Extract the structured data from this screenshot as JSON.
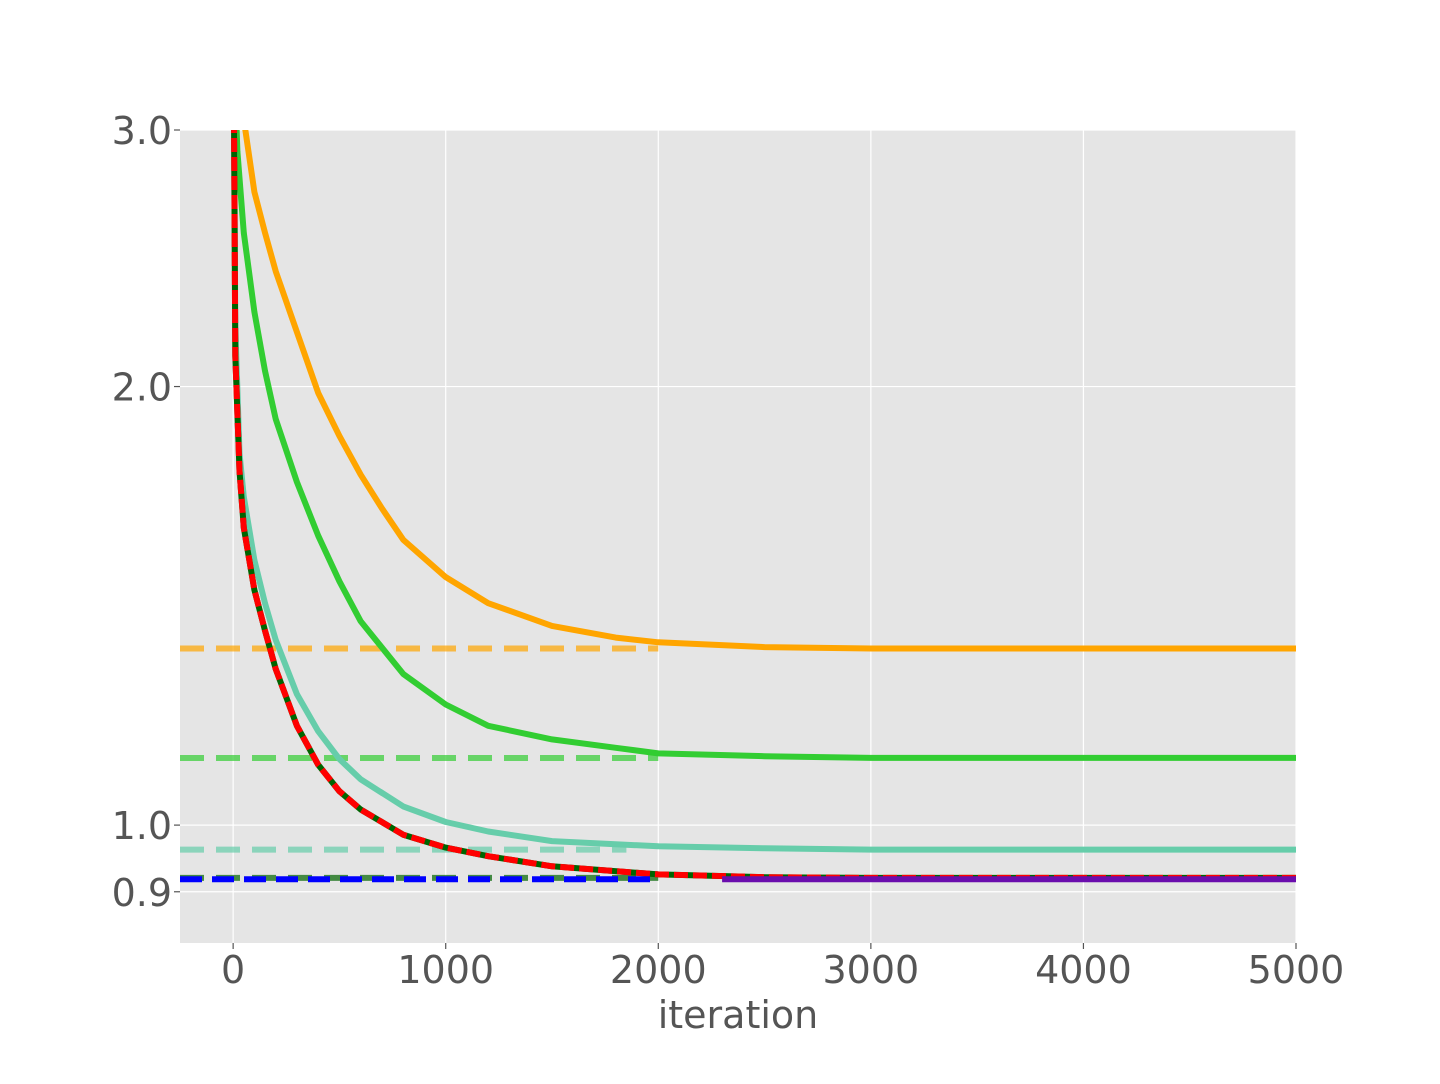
{
  "chart_data": {
    "type": "line",
    "title": "",
    "xlabel": "iteration",
    "ylabel": "",
    "xlim": [
      -250,
      5000
    ],
    "ylim": [
      0.83,
      3.0
    ],
    "yscale": "log",
    "grid": true,
    "x_ticks": [
      0,
      1000,
      2000,
      3000,
      4000,
      5000
    ],
    "x_tick_labels": [
      "0",
      "1000",
      "2000",
      "3000",
      "4000",
      "5000"
    ],
    "y_ticks": [
      0.9,
      1.0,
      2.0,
      3.0
    ],
    "y_tick_labels": [
      "0.9",
      "1.0",
      "2.0",
      "3.0"
    ],
    "background_color": "#e5e5e5",
    "series": [
      {
        "color": "#ffa500",
        "style": "solid",
        "points": [
          [
            0,
            4.0
          ],
          [
            50,
            3.05
          ],
          [
            100,
            2.72
          ],
          [
            150,
            2.55
          ],
          [
            200,
            2.4
          ],
          [
            300,
            2.18
          ],
          [
            400,
            1.98
          ],
          [
            500,
            1.85
          ],
          [
            600,
            1.74
          ],
          [
            700,
            1.65
          ],
          [
            800,
            1.57
          ],
          [
            1000,
            1.48
          ],
          [
            1200,
            1.42
          ],
          [
            1500,
            1.37
          ],
          [
            1800,
            1.345
          ],
          [
            2000,
            1.335
          ],
          [
            2500,
            1.325
          ],
          [
            3000,
            1.322
          ],
          [
            4000,
            1.322
          ],
          [
            5000,
            1.322
          ]
        ],
        "asymptote": 1.322,
        "asymptote_xmax": 2000
      },
      {
        "color": "#32cd32",
        "style": "solid",
        "points": [
          [
            0,
            3.5
          ],
          [
            20,
            2.9
          ],
          [
            50,
            2.55
          ],
          [
            100,
            2.25
          ],
          [
            150,
            2.05
          ],
          [
            200,
            1.9
          ],
          [
            300,
            1.72
          ],
          [
            400,
            1.58
          ],
          [
            500,
            1.47
          ],
          [
            600,
            1.38
          ],
          [
            800,
            1.27
          ],
          [
            1000,
            1.21
          ],
          [
            1200,
            1.17
          ],
          [
            1500,
            1.145
          ],
          [
            1800,
            1.13
          ],
          [
            2000,
            1.12
          ],
          [
            2500,
            1.115
          ],
          [
            3000,
            1.112
          ],
          [
            4000,
            1.112
          ],
          [
            5000,
            1.112
          ]
        ],
        "asymptote": 1.112,
        "asymptote_xmax": 2000
      },
      {
        "color": "#66cdaa",
        "style": "solid",
        "points": [
          [
            0,
            4.0
          ],
          [
            10,
            2.2
          ],
          [
            30,
            1.8
          ],
          [
            50,
            1.68
          ],
          [
            100,
            1.52
          ],
          [
            150,
            1.42
          ],
          [
            200,
            1.34
          ],
          [
            300,
            1.23
          ],
          [
            400,
            1.16
          ],
          [
            500,
            1.11
          ],
          [
            600,
            1.075
          ],
          [
            800,
            1.03
          ],
          [
            1000,
            1.005
          ],
          [
            1200,
            0.99
          ],
          [
            1500,
            0.975
          ],
          [
            2000,
            0.967
          ],
          [
            2500,
            0.964
          ],
          [
            3000,
            0.962
          ],
          [
            4000,
            0.962
          ],
          [
            5000,
            0.962
          ]
        ],
        "asymptote": 0.962,
        "asymptote_xmax": 1850
      },
      {
        "color": "#006400",
        "style": "solid",
        "points": [
          [
            0,
            4.0
          ],
          [
            10,
            2.1
          ],
          [
            30,
            1.75
          ],
          [
            50,
            1.6
          ],
          [
            100,
            1.45
          ],
          [
            150,
            1.36
          ],
          [
            200,
            1.28
          ],
          [
            300,
            1.17
          ],
          [
            400,
            1.1
          ],
          [
            500,
            1.055
          ],
          [
            600,
            1.025
          ],
          [
            800,
            0.985
          ],
          [
            1000,
            0.965
          ],
          [
            1200,
            0.952
          ],
          [
            1500,
            0.937
          ],
          [
            2000,
            0.925
          ],
          [
            2500,
            0.921
          ],
          [
            3000,
            0.92
          ],
          [
            4000,
            0.92
          ],
          [
            5000,
            0.92
          ]
        ],
        "asymptote": 0.92,
        "asymptote_xmax": 2000
      },
      {
        "color": "#ff0000",
        "style": "dashed",
        "points": [
          [
            0,
            4.0
          ],
          [
            10,
            2.1
          ],
          [
            30,
            1.75
          ],
          [
            50,
            1.6
          ],
          [
            100,
            1.45
          ],
          [
            150,
            1.36
          ],
          [
            200,
            1.28
          ],
          [
            300,
            1.17
          ],
          [
            400,
            1.1
          ],
          [
            500,
            1.055
          ],
          [
            600,
            1.025
          ],
          [
            800,
            0.985
          ],
          [
            1000,
            0.965
          ],
          [
            1200,
            0.952
          ],
          [
            1500,
            0.937
          ],
          [
            2000,
            0.925
          ],
          [
            2500,
            0.921
          ],
          [
            3000,
            0.92
          ],
          [
            4000,
            0.92
          ],
          [
            5000,
            0.92
          ]
        ]
      },
      {
        "color": "#0000ff",
        "style": "dashed",
        "points": [
          [
            -250,
            0.918
          ],
          [
            2000,
            0.918
          ]
        ]
      },
      {
        "color": "#6a0dad",
        "style": "solid",
        "points": [
          [
            2300,
            0.918
          ],
          [
            5000,
            0.918
          ]
        ]
      }
    ]
  }
}
